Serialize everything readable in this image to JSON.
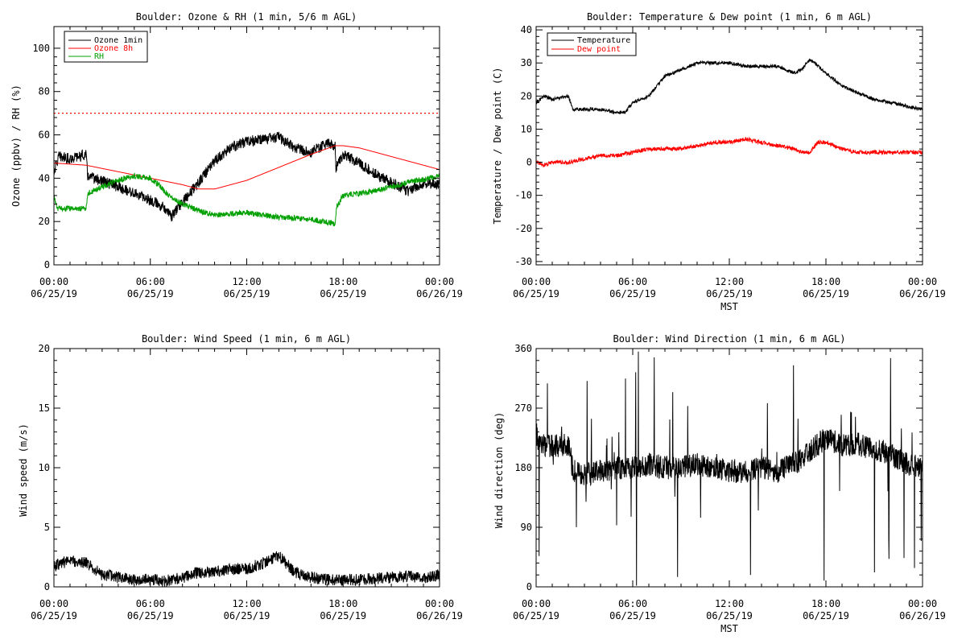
{
  "colors": {
    "black": "#000000",
    "red": "#ff0000",
    "green": "#00a000"
  },
  "chart_data": [
    {
      "type": "line",
      "title": "Boulder: Ozone & RH (1 min, 5/6 m AGL)",
      "ylabel": "Ozone (ppbv) / RH (%)",
      "xlabel": "",
      "ylim": [
        0,
        110
      ],
      "yticks": [
        "0",
        "20",
        "40",
        "60",
        "80",
        "100"
      ],
      "xlim": [
        0,
        24
      ],
      "xticks_time": [
        "00:00",
        "06:00",
        "12:00",
        "18:00",
        "00:00"
      ],
      "xticks_date": [
        "06/25/19",
        "06/25/19",
        "06/25/19",
        "06/25/19",
        "06/26/19"
      ],
      "legend_position": "top-left",
      "reference_line": {
        "y": 70,
        "style": "dotted",
        "color": "#ff0000"
      },
      "series": [
        {
          "name": "Ozone 1min",
          "color": "#000000",
          "noise": 2.5,
          "x": [
            0,
            0.3,
            1,
            2,
            2.1,
            4,
            5,
            6,
            7,
            7.3,
            8,
            9,
            10,
            11,
            12,
            13,
            14,
            15,
            16,
            17,
            17.5,
            17.55,
            18,
            19,
            20,
            21,
            22,
            23,
            24
          ],
          "y": [
            43,
            50,
            49,
            51,
            41,
            36,
            33,
            30,
            26,
            22,
            29,
            38,
            48,
            54,
            57,
            58,
            59,
            54,
            52,
            56,
            55,
            45,
            51,
            47,
            42,
            38,
            34,
            38,
            37
          ]
        },
        {
          "name": "Ozone 8h",
          "color": "#ff0000",
          "noise": 0,
          "x": [
            0,
            2,
            4,
            6,
            8,
            9,
            10,
            12,
            14,
            16,
            17.5,
            18,
            19,
            20,
            22,
            24
          ],
          "y": [
            47,
            46,
            43,
            40,
            37,
            35,
            35,
            39,
            45,
            51,
            55,
            55,
            54,
            52,
            48,
            44
          ]
        },
        {
          "name": "RH",
          "color": "#00a000",
          "noise": 1.3,
          "x": [
            0,
            0.2,
            1,
            2,
            2.1,
            3,
            4,
            5,
            6,
            6.5,
            7,
            8,
            9,
            10,
            12,
            14,
            16,
            17.5,
            17.6,
            18,
            20,
            22,
            24
          ],
          "y": [
            32,
            26,
            26,
            26,
            33,
            36,
            39,
            41,
            40,
            37,
            33,
            28,
            25,
            23,
            24,
            22,
            21,
            19,
            27,
            32,
            34,
            38,
            41
          ]
        }
      ]
    },
    {
      "type": "line",
      "title": "Boulder: Temperature & Dew point (1 min, 6 m AGL)",
      "ylabel": "Temperature / Dew point (C)",
      "xlabel": "MST",
      "ylim": [
        -31,
        41
      ],
      "yticks": [
        "-30",
        "-20",
        "-10",
        "0",
        "10",
        "20",
        "30",
        "40"
      ],
      "xlim": [
        0,
        24
      ],
      "xticks_time": [
        "00:00",
        "06:00",
        "12:00",
        "18:00",
        "00:00"
      ],
      "xticks_date": [
        "06/25/19",
        "06/25/19",
        "06/25/19",
        "06/25/19",
        "06/26/19"
      ],
      "legend_position": "top-left",
      "series": [
        {
          "name": "Temperature",
          "color": "#000000",
          "noise": 0.5,
          "x": [
            0,
            0.5,
            1,
            2,
            2.3,
            3,
            4,
            5,
            5.5,
            6,
            7,
            8,
            9,
            10,
            11,
            12,
            13,
            14,
            15,
            16,
            16.5,
            17,
            17.3,
            18,
            19,
            20,
            21,
            22,
            23,
            24
          ],
          "y": [
            18,
            20,
            19,
            20,
            16,
            16,
            16,
            15,
            15,
            18,
            20,
            26,
            28,
            30,
            30,
            30,
            29,
            29,
            29,
            27,
            28,
            31,
            30,
            27,
            23,
            21,
            19,
            18,
            17,
            16
          ]
        },
        {
          "name": "Dew point",
          "color": "#ff0000",
          "noise": 0.6,
          "x": [
            0,
            0.5,
            1,
            2,
            3,
            4,
            5,
            6,
            7,
            8,
            9,
            10,
            11,
            12,
            13,
            14,
            15,
            16,
            16.5,
            17,
            17.5,
            18,
            19,
            20,
            21,
            22,
            23,
            24
          ],
          "y": [
            0,
            -1,
            0,
            0,
            1,
            2,
            2,
            3,
            4,
            4,
            4,
            5,
            6,
            6,
            7,
            6,
            5,
            4,
            3,
            3,
            6,
            6,
            4,
            3,
            3,
            3,
            3,
            3
          ]
        }
      ]
    },
    {
      "type": "line",
      "title": "Boulder: Wind Speed (1 min, 6 m AGL)",
      "ylabel": "Wind speed (m/s)",
      "xlabel": "",
      "ylim": [
        0,
        20
      ],
      "yticks": [
        "0",
        "5",
        "10",
        "15",
        "20"
      ],
      "xlim": [
        0,
        24
      ],
      "xticks_time": [
        "00:00",
        "06:00",
        "12:00",
        "18:00",
        "00:00"
      ],
      "xticks_date": [
        "06/25/19",
        "06/25/19",
        "06/25/19",
        "06/25/19",
        "06/26/19"
      ],
      "series": [
        {
          "color": "#000000",
          "noise": 0.5,
          "x": [
            0,
            1,
            2,
            3,
            4,
            5,
            6,
            7,
            8,
            9,
            10,
            11,
            12,
            13,
            14,
            15,
            16,
            17,
            18,
            19,
            20,
            21,
            22,
            23,
            24
          ],
          "y": [
            1.8,
            2.2,
            2.0,
            1.0,
            0.8,
            0.6,
            0.6,
            0.5,
            0.8,
            1.2,
            1.2,
            1.5,
            1.5,
            2.0,
            2.6,
            1.2,
            0.8,
            0.6,
            0.6,
            0.6,
            0.7,
            0.8,
            0.9,
            0.7,
            1.0
          ]
        }
      ]
    },
    {
      "type": "line",
      "title": "Boulder: Wind Direction (1 min, 6 m AGL)",
      "ylabel": "Wind direction (deg)",
      "xlabel": "MST",
      "ylim": [
        0,
        360
      ],
      "yticks": [
        "0",
        "90",
        "180",
        "270",
        "360"
      ],
      "xlim": [
        0,
        24
      ],
      "xticks_time": [
        "00:00",
        "06:00",
        "12:00",
        "18:00",
        "00:00"
      ],
      "xticks_date": [
        "06/25/19",
        "06/25/19",
        "06/25/19",
        "06/25/19",
        "06/26/19"
      ],
      "series": [
        {
          "color": "#000000",
          "noise": 18,
          "x": [
            0,
            0.1,
            1,
            2,
            2.3,
            3,
            4,
            5,
            6,
            7,
            8,
            9,
            10,
            11,
            12,
            13,
            14,
            15,
            16,
            17,
            18,
            19,
            20,
            21,
            22,
            23,
            24
          ],
          "y": [
            240,
            215,
            212,
            215,
            175,
            170,
            175,
            180,
            180,
            185,
            180,
            180,
            185,
            180,
            175,
            175,
            180,
            175,
            185,
            205,
            225,
            215,
            215,
            210,
            200,
            185,
            180
          ]
        }
      ]
    }
  ]
}
